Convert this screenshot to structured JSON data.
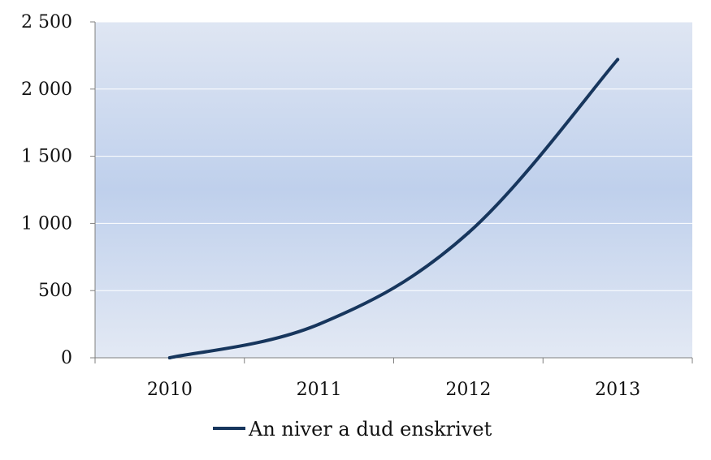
{
  "chart_data": {
    "type": "line",
    "title": "",
    "xlabel": "",
    "ylabel": "",
    "categories": [
      "2010",
      "2011",
      "2012",
      "2013"
    ],
    "ylim": [
      0,
      2500
    ],
    "yticks": [
      0,
      500,
      1000,
      1500,
      2000,
      2500
    ],
    "ytick_labels": [
      "0",
      "500",
      "1 000",
      "1 500",
      "2 000",
      "2 500"
    ],
    "grid": true,
    "legend_position": "bottom",
    "smooth": true,
    "series": [
      {
        "name": "An niver a dud enskrivet",
        "color": "#17365d",
        "values": [
          0,
          250,
          930,
          2220
        ]
      }
    ]
  }
}
